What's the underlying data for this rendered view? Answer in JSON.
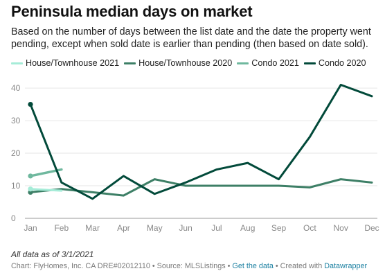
{
  "title": "Peninsula median days on market",
  "subtitle": "Based on the number of days between the list date and the date the property went pending, except when sold date is earlier than pending (then based on date sold).",
  "notes": "All data as of 3/1/2021",
  "footer": {
    "source_text": "Chart: FlyHomes, Inc. CA DRE#02012110 • Source: MLSListings • ",
    "get_data": "Get the data",
    "separator": " • Created with ",
    "created_with": "Datawrapper"
  },
  "colors": {
    "house_2021": "#a6ecd8",
    "house_2020": "#3d7f66",
    "condo_2021": "#6fb89e",
    "condo_2020": "#024a3a",
    "grid": "#e6e6e6",
    "axis_text": "#888888"
  },
  "chart_data": {
    "type": "line",
    "categories": [
      "Jan",
      "Feb",
      "Mar",
      "Apr",
      "May",
      "Jun",
      "Jul",
      "Aug",
      "Sep",
      "Oct",
      "Nov",
      "Dec"
    ],
    "y_ticks": [
      0,
      10,
      20,
      30,
      40
    ],
    "ylim": [
      0,
      43
    ],
    "grid": true,
    "legend_position": "top",
    "series": [
      {
        "name": "House/Townhouse 2021",
        "color": "#a6ecd8",
        "width": 3,
        "values": [
          9,
          8.5,
          null,
          null,
          null,
          null,
          null,
          null,
          null,
          null,
          null,
          null
        ]
      },
      {
        "name": "House/Townhouse 2020",
        "color": "#3d7f66",
        "width": 3,
        "values": [
          8,
          9,
          8,
          7,
          12,
          10,
          10,
          10,
          10,
          9.5,
          12,
          11
        ]
      },
      {
        "name": "Condo 2021",
        "color": "#6fb89e",
        "width": 3.5,
        "values": [
          13,
          15,
          null,
          null,
          null,
          null,
          null,
          null,
          null,
          null,
          null,
          null
        ]
      },
      {
        "name": "Condo 2020",
        "color": "#024a3a",
        "width": 3,
        "values": [
          35,
          11,
          6,
          13,
          7.5,
          11,
          15,
          17,
          12,
          25,
          41,
          37.5
        ]
      }
    ]
  }
}
